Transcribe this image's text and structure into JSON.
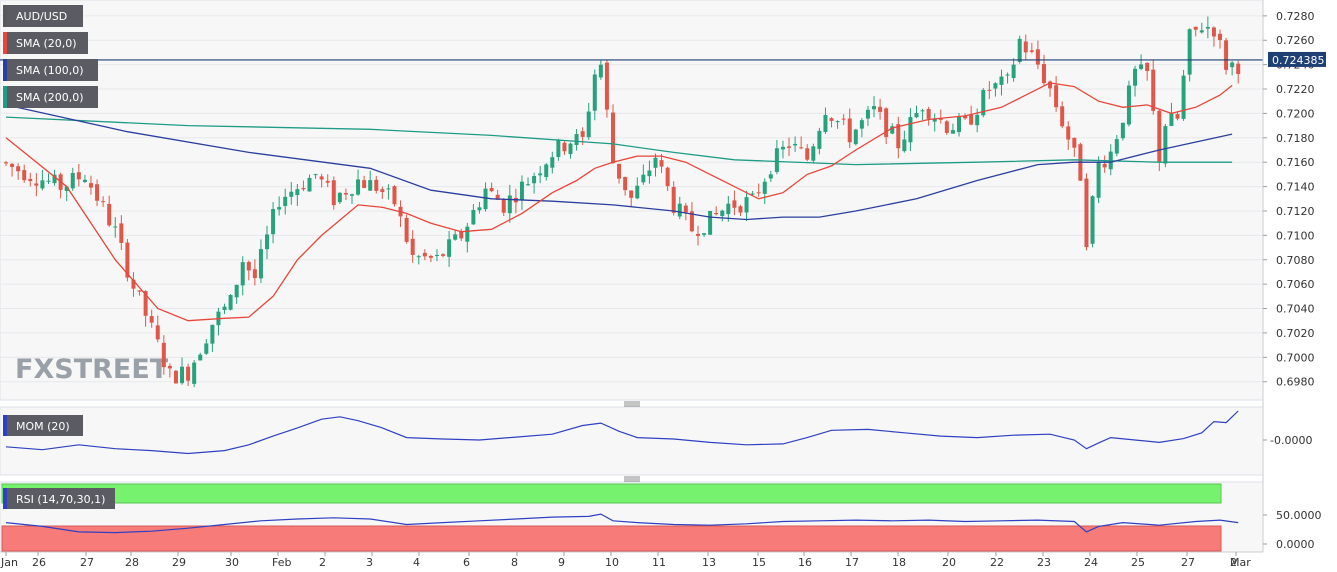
{
  "chart_data": [
    {
      "type": "candlestick",
      "title": "AUD/USD",
      "current_price_label": "0.724385",
      "current_price": 0.724385,
      "ylim": [
        0.6965,
        0.7293
      ],
      "y_ticks": [
        "0.7280",
        "0.7260",
        "0.7240",
        "0.7220",
        "0.7200",
        "0.7180",
        "0.7160",
        "0.7140",
        "0.7120",
        "0.7100",
        "0.7080",
        "0.7060",
        "0.7040",
        "0.7020",
        "0.7000",
        "0.6980"
      ],
      "y_tick_values": [
        0.728,
        0.726,
        0.724,
        0.722,
        0.72,
        0.718,
        0.716,
        0.714,
        0.712,
        0.71,
        0.708,
        0.706,
        0.704,
        0.702,
        0.7,
        0.698
      ],
      "x_ticks": [
        "Jan",
        "26",
        "27",
        "28",
        "29",
        "30",
        "Feb",
        "2",
        "3",
        "4",
        "6",
        "8",
        "9",
        "10",
        "11",
        "13",
        "15",
        "16",
        "17",
        "18",
        "20",
        "22",
        "23",
        "24",
        "25",
        "27",
        "Mar",
        "2"
      ],
      "legend": [
        "SMA (20,0)",
        "SMA (100,0)",
        "SMA (200,0)"
      ],
      "watermark": "FXSTREET",
      "colors": {
        "bull": "#26a27c",
        "bear": "#e0574a",
        "sma20": "#e8463a",
        "sma100": "#2b3f9e",
        "sma200": "#1f9c86",
        "price_line": "#1d3f74"
      },
      "anchors": [
        [
          0,
          0.716
        ],
        [
          10,
          0.714
        ],
        [
          14,
          0.715
        ],
        [
          19,
          0.7103
        ],
        [
          22,
          0.7058
        ],
        [
          24,
          0.7035
        ],
        [
          28,
          0.6985
        ],
        [
          31,
          0.6988
        ],
        [
          35,
          0.7028
        ],
        [
          38,
          0.7045
        ],
        [
          40,
          0.708
        ],
        [
          42,
          0.7065
        ],
        [
          46,
          0.713
        ],
        [
          52,
          0.715
        ],
        [
          55,
          0.713
        ],
        [
          59,
          0.7145
        ],
        [
          62,
          0.714
        ],
        [
          65,
          0.7127
        ],
        [
          68,
          0.7082
        ],
        [
          72,
          0.708
        ],
        [
          76,
          0.71
        ],
        [
          80,
          0.7138
        ],
        [
          83,
          0.7125
        ],
        [
          87,
          0.7145
        ],
        [
          91,
          0.7168
        ],
        [
          94,
          0.7178
        ],
        [
          96,
          0.7178
        ],
        [
          98,
          0.7233
        ],
        [
          99,
          0.724
        ],
        [
          101,
          0.716
        ],
        [
          104,
          0.713
        ],
        [
          106,
          0.7145
        ],
        [
          108,
          0.7165
        ],
        [
          111,
          0.7125
        ],
        [
          114,
          0.7105
        ],
        [
          117,
          0.7112
        ],
        [
          120,
          0.7125
        ],
        [
          124,
          0.7128
        ],
        [
          127,
          0.7158
        ],
        [
          130,
          0.7175
        ],
        [
          133,
          0.7163
        ],
        [
          136,
          0.7205
        ],
        [
          140,
          0.7182
        ],
        [
          144,
          0.7202
        ],
        [
          148,
          0.7175
        ],
        [
          152,
          0.7208
        ],
        [
          156,
          0.719
        ],
        [
          159,
          0.719
        ],
        [
          163,
          0.722
        ],
        [
          166,
          0.7225
        ],
        [
          168,
          0.726
        ],
        [
          171,
          0.724
        ],
        [
          173,
          0.722
        ],
        [
          176,
          0.718
        ],
        [
          178,
          0.715
        ],
        [
          179,
          0.7098
        ],
        [
          181,
          0.7158
        ],
        [
          183,
          0.7168
        ],
        [
          185,
          0.7198
        ],
        [
          187,
          0.7233
        ],
        [
          189,
          0.7232
        ],
        [
          191,
          0.7165
        ],
        [
          192,
          0.7192
        ],
        [
          194,
          0.7195
        ],
        [
          196,
          0.7262
        ],
        [
          198,
          0.7272
        ],
        [
          200,
          0.727
        ],
        [
          202,
          0.724
        ]
      ],
      "sma20": [
        [
          0,
          0.718
        ],
        [
          10,
          0.714
        ],
        [
          18,
          0.708
        ],
        [
          25,
          0.704
        ],
        [
          30,
          0.703
        ],
        [
          36,
          0.7032
        ],
        [
          40,
          0.7033
        ],
        [
          44,
          0.705
        ],
        [
          48,
          0.708
        ],
        [
          52,
          0.71
        ],
        [
          58,
          0.7125
        ],
        [
          62,
          0.7123
        ],
        [
          66,
          0.7118
        ],
        [
          70,
          0.711
        ],
        [
          75,
          0.7103
        ],
        [
          80,
          0.7105
        ],
        [
          85,
          0.7118
        ],
        [
          90,
          0.7135
        ],
        [
          94,
          0.7145
        ],
        [
          97,
          0.7155
        ],
        [
          100,
          0.716
        ],
        [
          104,
          0.7165
        ],
        [
          108,
          0.7165
        ],
        [
          112,
          0.716
        ],
        [
          116,
          0.715
        ],
        [
          120,
          0.714
        ],
        [
          124,
          0.713
        ],
        [
          128,
          0.7135
        ],
        [
          132,
          0.715
        ],
        [
          136,
          0.7157
        ],
        [
          140,
          0.717
        ],
        [
          146,
          0.7188
        ],
        [
          152,
          0.7195
        ],
        [
          158,
          0.7198
        ],
        [
          164,
          0.7205
        ],
        [
          168,
          0.7215
        ],
        [
          172,
          0.7225
        ],
        [
          176,
          0.7222
        ],
        [
          180,
          0.721
        ],
        [
          184,
          0.7205
        ],
        [
          188,
          0.7207
        ],
        [
          192,
          0.72
        ],
        [
          196,
          0.7205
        ],
        [
          200,
          0.7215
        ],
        [
          202,
          0.7223
        ]
      ],
      "sma100": [
        [
          0,
          0.7207
        ],
        [
          20,
          0.7185
        ],
        [
          40,
          0.7168
        ],
        [
          60,
          0.7155
        ],
        [
          70,
          0.7137
        ],
        [
          80,
          0.713
        ],
        [
          90,
          0.7128
        ],
        [
          100,
          0.7125
        ],
        [
          110,
          0.712
        ],
        [
          116,
          0.7115
        ],
        [
          122,
          0.7113
        ],
        [
          128,
          0.7115
        ],
        [
          134,
          0.7115
        ],
        [
          140,
          0.712
        ],
        [
          150,
          0.713
        ],
        [
          160,
          0.7145
        ],
        [
          170,
          0.7158
        ],
        [
          176,
          0.716
        ],
        [
          182,
          0.716
        ],
        [
          190,
          0.717
        ],
        [
          202,
          0.7183
        ]
      ],
      "sma200": [
        [
          0,
          0.7197
        ],
        [
          30,
          0.719
        ],
        [
          60,
          0.7187
        ],
        [
          80,
          0.7182
        ],
        [
          100,
          0.7175
        ],
        [
          110,
          0.7168
        ],
        [
          120,
          0.7162
        ],
        [
          140,
          0.7158
        ],
        [
          160,
          0.716
        ],
        [
          176,
          0.7162
        ],
        [
          190,
          0.716
        ],
        [
          202,
          0.716
        ]
      ]
    },
    {
      "type": "line",
      "title": "MOM (20)",
      "y_ticks": [
        "-0.0000"
      ],
      "ylim": [
        -0.6,
        0.6
      ],
      "series": [
        {
          "name": "MOM (20)",
          "color": "#2f40c2",
          "points": [
            [
              0,
              -0.14
            ],
            [
              6,
              -0.2
            ],
            [
              12,
              -0.1
            ],
            [
              18,
              -0.18
            ],
            [
              24,
              -0.22
            ],
            [
              30,
              -0.28
            ],
            [
              36,
              -0.22
            ],
            [
              40,
              -0.1
            ],
            [
              44,
              0.08
            ],
            [
              48,
              0.25
            ],
            [
              52,
              0.43
            ],
            [
              55,
              0.48
            ],
            [
              58,
              0.4
            ],
            [
              62,
              0.25
            ],
            [
              66,
              0.05
            ],
            [
              72,
              0.02
            ],
            [
              78,
              0.0
            ],
            [
              84,
              0.06
            ],
            [
              90,
              0.12
            ],
            [
              95,
              0.3
            ],
            [
              98,
              0.35
            ],
            [
              101,
              0.18
            ],
            [
              104,
              0.05
            ],
            [
              110,
              0.02
            ],
            [
              116,
              -0.05
            ],
            [
              122,
              -0.1
            ],
            [
              128,
              -0.08
            ],
            [
              132,
              0.05
            ],
            [
              136,
              0.2
            ],
            [
              142,
              0.22
            ],
            [
              148,
              0.15
            ],
            [
              154,
              0.08
            ],
            [
              160,
              0.05
            ],
            [
              166,
              0.1
            ],
            [
              172,
              0.12
            ],
            [
              176,
              0.0
            ],
            [
              178,
              -0.18
            ],
            [
              180,
              -0.06
            ],
            [
              182,
              0.05
            ],
            [
              186,
              0.0
            ],
            [
              190,
              -0.05
            ],
            [
              194,
              0.03
            ],
            [
              197,
              0.15
            ],
            [
              199,
              0.38
            ],
            [
              201,
              0.36
            ],
            [
              203,
              0.6
            ]
          ]
        }
      ]
    },
    {
      "type": "line",
      "title": "RSI (14,70,30,1)",
      "y_ticks": [
        "50.0000",
        "0.0000"
      ],
      "ylim": [
        0,
        100
      ],
      "overbought": 70,
      "oversold": 30,
      "series": [
        {
          "name": "RSI (14,70,30,1)",
          "color": "#2f40c2",
          "points": [
            [
              0,
              55
            ],
            [
              6,
              45
            ],
            [
              12,
              30
            ],
            [
              18,
              28
            ],
            [
              24,
              32
            ],
            [
              30,
              40
            ],
            [
              36,
              50
            ],
            [
              42,
              60
            ],
            [
              48,
              65
            ],
            [
              54,
              68
            ],
            [
              60,
              65
            ],
            [
              66,
              50
            ],
            [
              72,
              55
            ],
            [
              78,
              60
            ],
            [
              84,
              65
            ],
            [
              90,
              70
            ],
            [
              96,
              72
            ],
            [
              98,
              78
            ],
            [
              100,
              60
            ],
            [
              104,
              55
            ],
            [
              110,
              50
            ],
            [
              116,
              48
            ],
            [
              122,
              52
            ],
            [
              128,
              58
            ],
            [
              134,
              60
            ],
            [
              140,
              62
            ],
            [
              146,
              60
            ],
            [
              152,
              62
            ],
            [
              158,
              58
            ],
            [
              164,
              60
            ],
            [
              170,
              62
            ],
            [
              176,
              58
            ],
            [
              178,
              30
            ],
            [
              180,
              45
            ],
            [
              184,
              55
            ],
            [
              190,
              48
            ],
            [
              196,
              58
            ],
            [
              200,
              62
            ],
            [
              203,
              55
            ]
          ]
        }
      ]
    }
  ]
}
